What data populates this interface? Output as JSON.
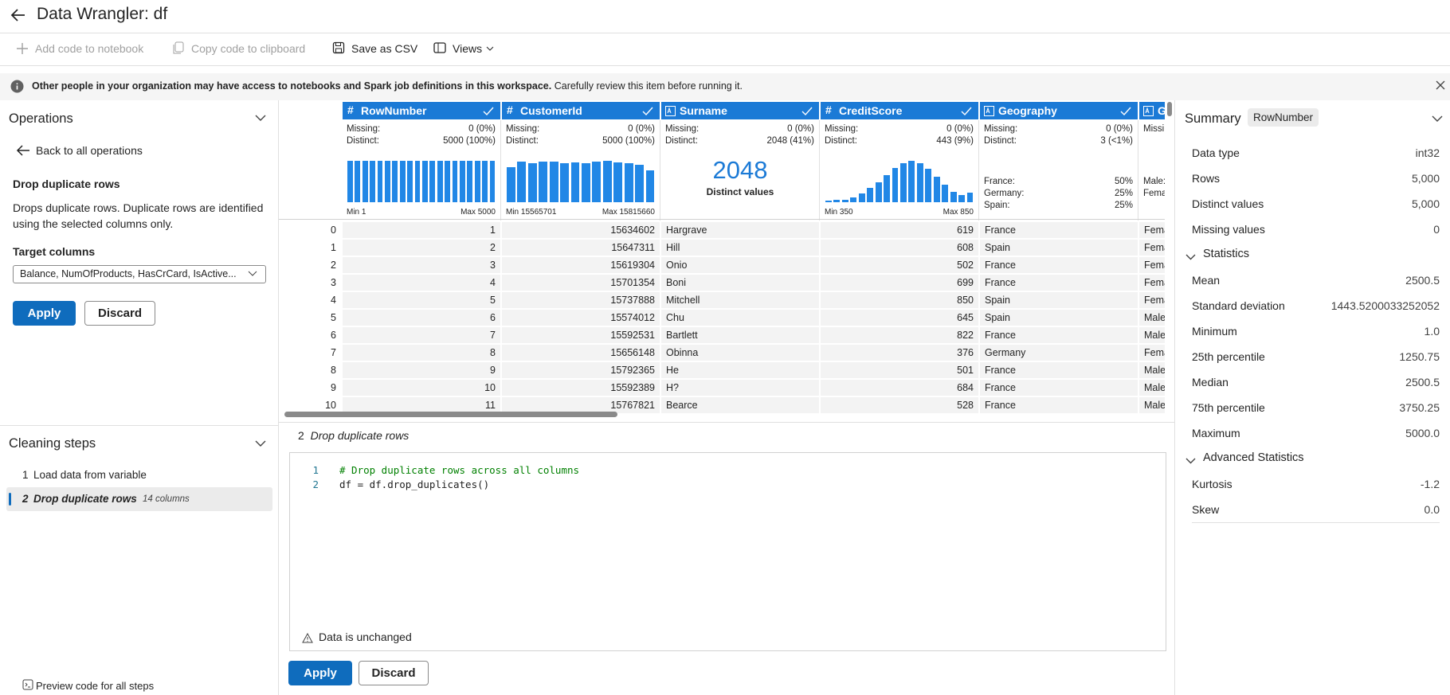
{
  "header": {
    "title": "Data Wrangler: df"
  },
  "toolbar": {
    "add_code": "Add code to notebook",
    "copy_code": "Copy code to clipboard",
    "save_csv": "Save as CSV",
    "views": "Views"
  },
  "banner": {
    "bold": "Other people in your organization may have access to notebooks and Spark job definitions in this workspace.",
    "text": "Carefully review this item before running it."
  },
  "operations": {
    "title": "Operations",
    "back": "Back to all operations",
    "op_title": "Drop duplicate rows",
    "description": "Drops duplicate rows. Duplicate rows are identified using the selected columns only.",
    "target_label": "Target columns",
    "target_value": "Balance, NumOfProducts, HasCrCard, IsActive...",
    "apply": "Apply",
    "discard": "Discard"
  },
  "cleaning_steps": {
    "title": "Cleaning steps",
    "steps": [
      {
        "number": 1,
        "label": "Load data from variable"
      },
      {
        "number": 2,
        "label": "Drop duplicate rows",
        "detail": "14 columns"
      }
    ],
    "preview": "Preview code for all steps"
  },
  "grid": {
    "missing_label": "Missing:",
    "distinct_label": "Distinct:",
    "columns": [
      {
        "name": "RowNumber",
        "kind": "numeric",
        "missing": "0 (0%)",
        "distinct": "5000 (100%)",
        "histogram": [
          250,
          250,
          250,
          250,
          250,
          250,
          250,
          250,
          250,
          250,
          250,
          250,
          250,
          250,
          250,
          250,
          250,
          250,
          250,
          250
        ],
        "min_label": "Min 1",
        "max_label": "Max 5000"
      },
      {
        "name": "CustomerId",
        "kind": "numeric",
        "missing": "0 (0%)",
        "distinct": "5000 (100%)",
        "histogram": [
          320,
          370,
          355,
          370,
          370,
          360,
          365,
          355,
          370,
          380,
          365,
          355,
          340,
          295
        ],
        "min_label": "Min 15565701",
        "max_label": "Max 15815660"
      },
      {
        "name": "Surname",
        "kind": "text",
        "missing": "0 (0%)",
        "distinct": "2048 (41%)",
        "distinct_big": 2048,
        "distinct_big_label": "Distinct values"
      },
      {
        "name": "CreditScore",
        "kind": "numeric",
        "missing": "0 (0%)",
        "distinct": "443 (9%)",
        "histogram": [
          20,
          25,
          30,
          55,
          95,
          160,
          230,
          310,
          390,
          445,
          470,
          445,
          380,
          290,
          200,
          120,
          80,
          110
        ],
        "min_label": "Min 350",
        "max_label": "Max 850"
      },
      {
        "name": "Geography",
        "kind": "text",
        "missing": "0 (0%)",
        "distinct": "3 (<1%)",
        "frequencies": [
          {
            "label": "France:",
            "value": "50%"
          },
          {
            "label": "Germany:",
            "value": "25%"
          },
          {
            "label": "Spain:",
            "value": "25%"
          }
        ]
      },
      {
        "name": "Gender",
        "kind": "text",
        "frequencies": [
          {
            "label": "Male:"
          },
          {
            "label": "Female:"
          }
        ]
      }
    ],
    "rows": [
      [
        0,
        1,
        15634602,
        "Hargrave",
        619,
        "France",
        "Female"
      ],
      [
        1,
        2,
        15647311,
        "Hill",
        608,
        "Spain",
        "Female"
      ],
      [
        2,
        3,
        15619304,
        "Onio",
        502,
        "France",
        "Female"
      ],
      [
        3,
        4,
        15701354,
        "Boni",
        699,
        "France",
        "Female"
      ],
      [
        4,
        5,
        15737888,
        "Mitchell",
        850,
        "Spain",
        "Female"
      ],
      [
        5,
        6,
        15574012,
        "Chu",
        645,
        "Spain",
        "Male"
      ],
      [
        6,
        7,
        15592531,
        "Bartlett",
        822,
        "France",
        "Male"
      ],
      [
        7,
        8,
        15656148,
        "Obinna",
        376,
        "Germany",
        "Female"
      ],
      [
        8,
        9,
        15792365,
        "He",
        501,
        "France",
        "Male"
      ],
      [
        9,
        10,
        15592389,
        "H?",
        684,
        "France",
        "Male"
      ],
      [
        10,
        11,
        15767821,
        "Bearce",
        528,
        "France",
        "Male"
      ]
    ]
  },
  "code": {
    "step_number": 2,
    "step_title": "Drop duplicate rows",
    "lines": [
      {
        "number": 1,
        "text": "# Drop duplicate rows across all columns"
      },
      {
        "number": 2,
        "text": "df = df.drop_duplicates()"
      }
    ],
    "status": "Data is unchanged",
    "apply": "Apply",
    "discard": "Discard"
  },
  "summary": {
    "title": "Summary",
    "column": "RowNumber",
    "items": [
      {
        "label": "Data type",
        "value": "int32"
      },
      {
        "label": "Rows",
        "value": "5,000"
      },
      {
        "label": "Distinct values",
        "value": "5,000"
      },
      {
        "label": "Missing values",
        "value": "0"
      }
    ],
    "statistics": {
      "title": "Statistics",
      "items": [
        {
          "label": "Mean",
          "value": "2500.5"
        },
        {
          "label": "Standard deviation",
          "value": "1443.5200033252052"
        },
        {
          "label": "Minimum",
          "value": "1.0"
        },
        {
          "label": "25th percentile",
          "value": "1250.75"
        },
        {
          "label": "Median",
          "value": "2500.5"
        },
        {
          "label": "75th percentile",
          "value": "3750.25"
        },
        {
          "label": "Maximum",
          "value": "5000.0"
        }
      ]
    },
    "advanced": {
      "title": "Advanced Statistics",
      "items": [
        {
          "label": "Kurtosis",
          "value": "-1.2"
        },
        {
          "label": "Skew",
          "value": "0.0"
        }
      ]
    }
  }
}
